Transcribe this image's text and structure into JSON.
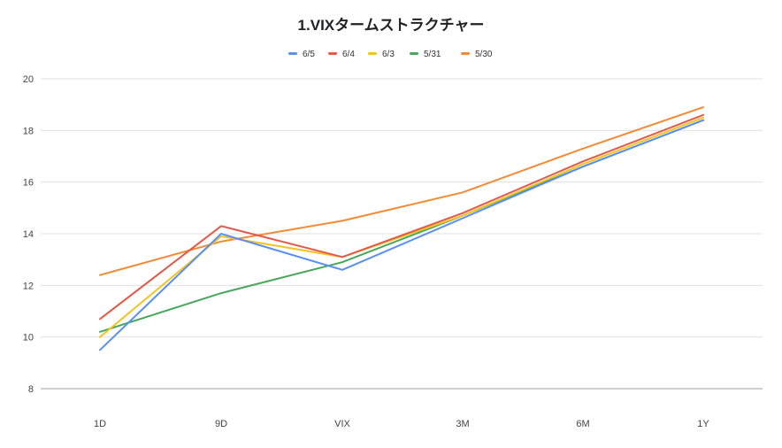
{
  "chart_data": {
    "type": "line",
    "title": "1.VIXタームストラクチャー",
    "xlabel": "",
    "ylabel": "",
    "categories": [
      "1D",
      "9D",
      "VIX",
      "3M",
      "6M",
      "1Y"
    ],
    "ylim": [
      8,
      20
    ],
    "yticks": [
      8,
      10,
      12,
      14,
      16,
      18,
      20
    ],
    "grid": true,
    "legend_position": "top",
    "series": [
      {
        "name": "6/5",
        "color": "#5b8ff0",
        "values": [
          9.5,
          14.0,
          12.6,
          14.6,
          16.6,
          18.4
        ]
      },
      {
        "name": "6/4",
        "color": "#e25a48",
        "values": [
          10.7,
          14.3,
          13.1,
          14.8,
          16.8,
          18.6
        ]
      },
      {
        "name": "6/3",
        "color": "#f4c322",
        "values": [
          10.0,
          13.9,
          13.1,
          14.7,
          16.7,
          18.5
        ]
      },
      {
        "name": "5/31",
        "color": "#46a85a",
        "values": [
          10.2,
          11.7,
          12.9,
          14.7,
          16.6,
          18.4
        ]
      },
      {
        "name": "5/30",
        "color": "#f38a34",
        "values": [
          12.4,
          13.7,
          14.5,
          15.6,
          17.3,
          18.9
        ]
      }
    ]
  }
}
